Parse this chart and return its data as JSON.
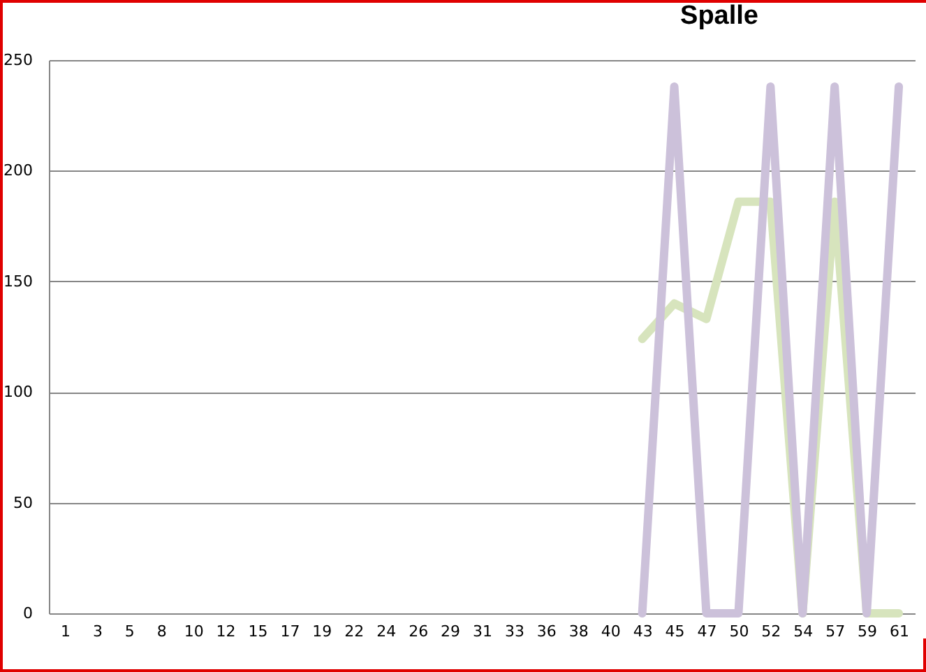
{
  "chart_data": {
    "type": "line",
    "title": "Spalle",
    "categories": [
      "1",
      "3",
      "5",
      "8",
      "10",
      "12",
      "15",
      "17",
      "19",
      "22",
      "24",
      "26",
      "29",
      "31",
      "33",
      "36",
      "38",
      "40",
      "43",
      "45",
      "47",
      "50",
      "52",
      "54",
      "57",
      "59",
      "61"
    ],
    "series": [
      {
        "color": "#d7e4bd",
        "values": [
          null,
          null,
          null,
          null,
          null,
          null,
          null,
          null,
          null,
          null,
          null,
          null,
          null,
          null,
          null,
          null,
          null,
          null,
          124,
          140,
          133,
          186,
          186,
          0,
          186,
          0,
          0
        ]
      },
      {
        "color": "#ccc1da",
        "values": [
          null,
          null,
          null,
          null,
          null,
          null,
          null,
          null,
          null,
          null,
          null,
          null,
          null,
          null,
          null,
          null,
          null,
          null,
          0,
          238,
          0,
          0,
          238,
          0,
          238,
          0,
          238
        ]
      }
    ],
    "ylim": [
      0,
      250
    ],
    "yticks": [
      0,
      50,
      100,
      150,
      200,
      250
    ],
    "grid": "y",
    "legend": false,
    "marker": "none",
    "line_style": "solid"
  }
}
